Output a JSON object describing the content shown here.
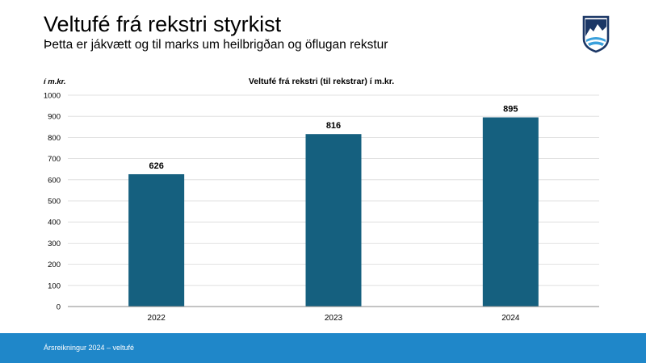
{
  "header": {
    "title": "Veltufé frá rekstri styrkist",
    "subtitle": "Þetta er jákvætt og til marks um heilbrigðan og öflugan rekstur"
  },
  "logo": {
    "icon": "mountain-crest-shield-icon",
    "colors": [
      "#1b3766",
      "#3aa0dc",
      "#ffffff"
    ]
  },
  "chart_data": {
    "type": "bar",
    "title": "Veltufé frá rekstri (til rekstrar) í m.kr.",
    "ylabel": "í m.kr.",
    "xlabel": "",
    "categories": [
      "2022",
      "2023",
      "2024"
    ],
    "values": [
      626,
      816,
      895
    ],
    "data_labels": [
      "626",
      "816",
      "895"
    ],
    "ylim": [
      0,
      1000
    ],
    "yticks": [
      "0",
      "100",
      "200",
      "300",
      "400",
      "500",
      "600",
      "700",
      "800",
      "900",
      "1000"
    ],
    "grid": true,
    "legend": "none",
    "bar_color": "#15607f"
  },
  "footer": {
    "text": "Ársreikningur 2024 – veltufé",
    "color": "#1f87c9"
  }
}
